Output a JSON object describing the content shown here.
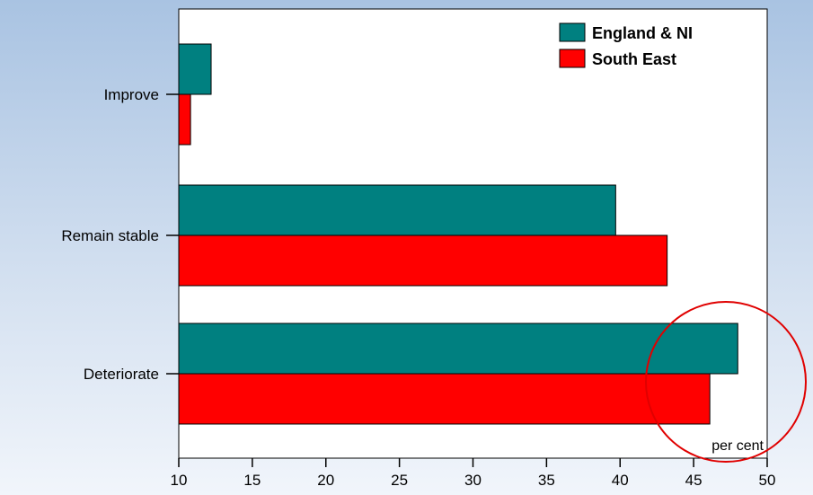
{
  "chart_data": {
    "type": "bar",
    "orientation": "horizontal",
    "categories": [
      "Improve",
      "Remain stable",
      "Deteriorate"
    ],
    "series": [
      {
        "name": "England & NI",
        "color": "#008080",
        "values": [
          12.2,
          39.7,
          48.0
        ]
      },
      {
        "name": "South East",
        "color": "#ff0000",
        "values": [
          10.8,
          43.2,
          46.1
        ]
      }
    ],
    "xlim": [
      10,
      50
    ],
    "xticks": [
      10,
      15,
      20,
      25,
      30,
      35,
      40,
      45,
      50
    ],
    "unit_label": "per cent",
    "legend_position": "top-right",
    "grid": false,
    "annotation": "red-circle-around-unit-label"
  }
}
